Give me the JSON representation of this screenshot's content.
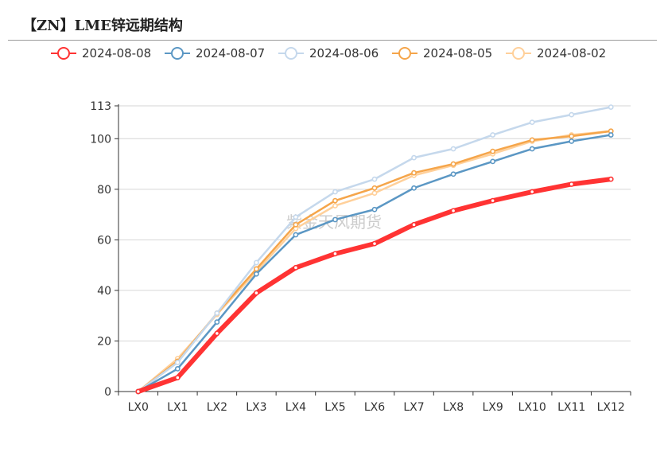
{
  "title": "【ZN】LME锌远期结构",
  "watermark": "紫金天风期货",
  "chart_data": {
    "type": "line",
    "title": "【ZN】LME锌远期结构",
    "categories": [
      "LX0",
      "LX1",
      "LX2",
      "LX3",
      "LX4",
      "LX5",
      "LX6",
      "LX7",
      "LX8",
      "LX9",
      "LX10",
      "LX11",
      "LX12"
    ],
    "yticks": [
      0,
      20,
      40,
      60,
      80,
      100,
      113
    ],
    "ylim": [
      0,
      113
    ],
    "grid": true,
    "legend_position": "top",
    "series": [
      {
        "name": "2024-08-08",
        "color": "#ff3333",
        "width": 6,
        "values": [
          0,
          5.5,
          23,
          39,
          49,
          54.5,
          58.5,
          66,
          71.5,
          75.5,
          79,
          82,
          84
        ]
      },
      {
        "name": "2024-08-07",
        "color": "#5b97c4",
        "width": 2.5,
        "values": [
          0,
          9,
          27.5,
          46.5,
          62,
          68,
          72,
          80.5,
          86,
          91,
          96,
          99,
          101.5
        ]
      },
      {
        "name": "2024-08-06",
        "color": "#c5d8ec",
        "width": 2.5,
        "values": [
          0,
          11.5,
          31,
          51,
          69,
          79,
          84,
          92.5,
          96,
          101.5,
          106.5,
          109.5,
          112.5
        ]
      },
      {
        "name": "2024-08-05",
        "color": "#f5a54a",
        "width": 2.5,
        "values": [
          0,
          12,
          31,
          48.5,
          66,
          75.5,
          80.5,
          86.5,
          90,
          95,
          99.5,
          101,
          103
        ]
      },
      {
        "name": "2024-08-02",
        "color": "#ffd09a",
        "width": 2.5,
        "values": [
          0,
          13,
          30.5,
          47.5,
          64.5,
          73.5,
          78.5,
          85.5,
          89.5,
          94,
          99,
          101.5,
          103
        ]
      }
    ]
  }
}
